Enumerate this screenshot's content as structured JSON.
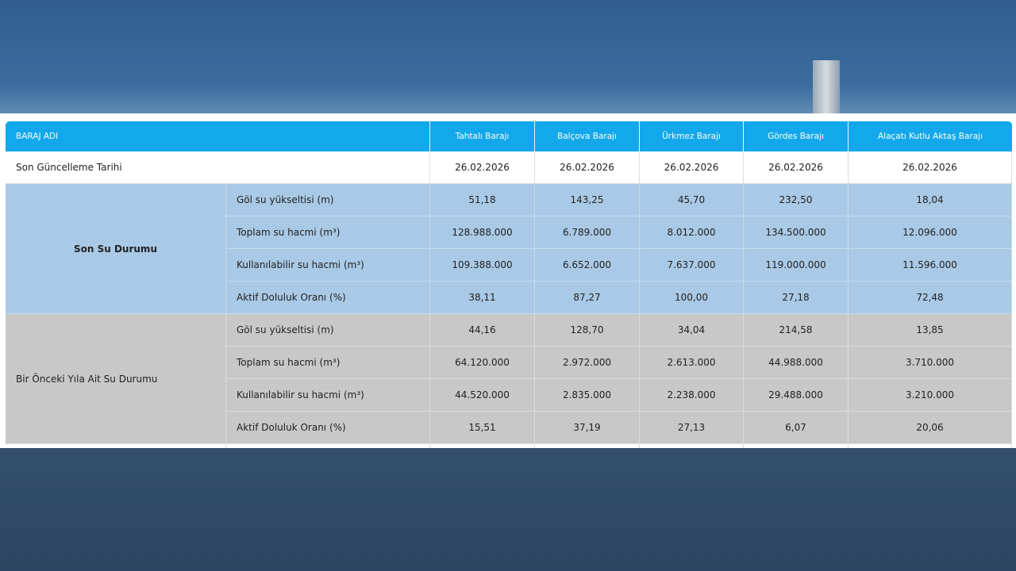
{
  "table": {
    "header": [
      "BARAJ ADI",
      "Tahtalı Barajı",
      "Balçova Barajı",
      "Ürkmez Barajı",
      "Gördes Barajı",
      "Alaçatı Kutlu Aktaş Barajı"
    ],
    "date_row": {
      "label": "Son Güncelleme Tarihi",
      "values": [
        "26.02.2026",
        "26.02.2026",
        "26.02.2026",
        "26.02.2026",
        "26.02.2026"
      ]
    },
    "groups": [
      {
        "label": "Son Su Durumu",
        "rows": [
          {
            "label": "Göl su yükseltisi (m)",
            "values": [
              "51,18",
              "143,25",
              "45,70",
              "232,50",
              "18,04"
            ]
          },
          {
            "label": "Toplam su hacmi (m³)",
            "values": [
              "128.988.000",
              "6.789.000",
              "8.012.000",
              "134.500.000",
              "12.096.000"
            ]
          },
          {
            "label": "Kullanılabilir su hacmi (m³)",
            "values": [
              "109.388.000",
              "6.652.000",
              "7.637.000",
              "119.000.000",
              "11.596.000"
            ]
          },
          {
            "label": "Aktif Doluluk Oranı (%)",
            "values": [
              "38,11",
              "87,27",
              "100,00",
              "27,18",
              "72,48"
            ]
          }
        ]
      },
      {
        "label": "Bir Önceki Yıla Ait Su Durumu",
        "rows": [
          {
            "label": "Göl su yükseltisi (m)",
            "values": [
              "44,16",
              "128,70",
              "34,04",
              "214,58",
              "13,85"
            ]
          },
          {
            "label": "Toplam su hacmi (m³)",
            "values": [
              "64.120.000",
              "2.972.000",
              "2.613.000",
              "44.988.000",
              "3.710.000"
            ]
          },
          {
            "label": "Kullanılabilir su hacmi (m³)",
            "values": [
              "44.520.000",
              "2.835.000",
              "2.238.000",
              "29.488.000",
              "3.210.000"
            ]
          },
          {
            "label": "Aktif Doluluk Oranı (%)",
            "values": [
              "15,51",
              "37,19",
              "27,13",
              "6,07",
              "20,06"
            ]
          }
        ]
      }
    ]
  }
}
